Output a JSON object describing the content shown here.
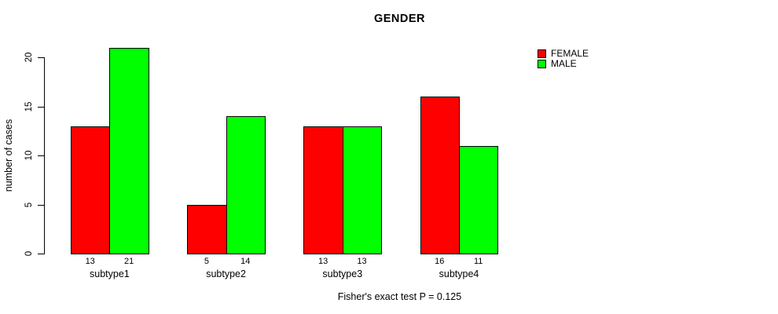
{
  "chart_data": {
    "type": "bar",
    "title": "GENDER",
    "ylabel": "number of cases",
    "xlabel": "",
    "footnote": "Fisher's exact test P = 0.125",
    "categories": [
      "subtype1",
      "subtype2",
      "subtype3",
      "subtype4"
    ],
    "series": [
      {
        "name": "FEMALE",
        "color": "#ff0000",
        "values": [
          13,
          5,
          13,
          16
        ]
      },
      {
        "name": "MALE",
        "color": "#00ff00",
        "values": [
          21,
          14,
          13,
          11
        ]
      }
    ],
    "yticks": [
      0,
      5,
      10,
      15,
      20
    ],
    "ylim": [
      0,
      21
    ],
    "grid": false,
    "legend_position": "top-right",
    "bar_border_color": "#000000",
    "background_color": "#ffffff"
  }
}
